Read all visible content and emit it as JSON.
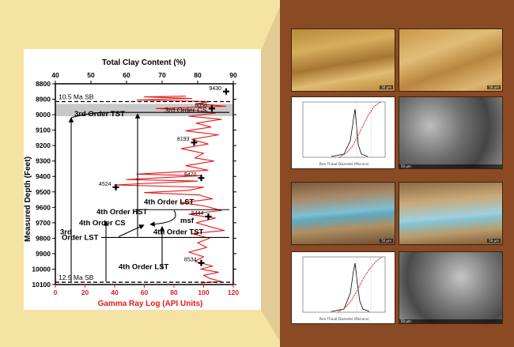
{
  "colors": {
    "background": "#f5e3a3",
    "photo_panel": "#8a4a23",
    "gamma_ray": "#e41a1c",
    "clay": "#000000",
    "condensed_section_band": "#c8c8c8"
  },
  "chart_data": {
    "type": "line",
    "title": "Total Clay Content (%)",
    "ylabel": "Measured Depth (Feet)",
    "xlabel_bottom": "Gamma Ray Log (API Units)",
    "ylim": [
      8800,
      10100
    ],
    "y_inverted": true,
    "y_ticks": [
      "8800",
      "8900",
      "9000",
      "9100",
      "9200",
      "9300",
      "9400",
      "9500",
      "9600",
      "9700",
      "9800",
      "9900",
      "10000",
      "10100"
    ],
    "top_axis": {
      "range": [
        40,
        90
      ],
      "ticks": [
        "40",
        "50",
        "60",
        "70",
        "80",
        "90"
      ]
    },
    "bottom_axis": {
      "range": [
        0,
        120
      ],
      "ticks": [
        "0",
        "20",
        "40",
        "60",
        "80",
        "100",
        "120"
      ]
    },
    "series": [
      {
        "axis": "bottom",
        "color": "#e41a1c",
        "points": [
          [
            88,
            8880
          ],
          [
            60,
            8885
          ],
          [
            92,
            8895
          ],
          [
            55,
            8905
          ],
          [
            104,
            8915
          ],
          [
            95,
            8930
          ],
          [
            115,
            8945
          ],
          [
            68,
            8960
          ],
          [
            98,
            8975
          ],
          [
            108,
            8990
          ],
          [
            90,
            9010
          ],
          [
            112,
            9030
          ],
          [
            95,
            9055
          ],
          [
            105,
            9080
          ],
          [
            88,
            9105
          ],
          [
            110,
            9130
          ],
          [
            92,
            9160
          ],
          [
            103,
            9190
          ],
          [
            85,
            9220
          ],
          [
            100,
            9250
          ],
          [
            94,
            9280
          ],
          [
            107,
            9300
          ],
          [
            88,
            9330
          ],
          [
            103,
            9360
          ],
          [
            55,
            9385
          ],
          [
            98,
            9395
          ],
          [
            48,
            9420
          ],
          [
            96,
            9430
          ],
          [
            40,
            9455
          ],
          [
            100,
            9470
          ],
          [
            90,
            9490
          ],
          [
            60,
            9505
          ],
          [
            97,
            9520
          ],
          [
            106,
            9545
          ],
          [
            85,
            9570
          ],
          [
            100,
            9590
          ],
          [
            112,
            9620
          ],
          [
            90,
            9645
          ],
          [
            108,
            9670
          ],
          [
            95,
            9700
          ],
          [
            106,
            9730
          ],
          [
            114,
            9750
          ],
          [
            92,
            9770
          ],
          [
            104,
            9800
          ],
          [
            96,
            9830
          ],
          [
            102,
            9860
          ],
          [
            90,
            9890
          ],
          [
            100,
            9920
          ],
          [
            94,
            9950
          ],
          [
            106,
            9980
          ],
          [
            98,
            10000
          ],
          [
            110,
            10020
          ],
          [
            100,
            10040
          ],
          [
            104,
            10060
          ],
          [
            112,
            10080
          ],
          [
            98,
            10090
          ]
        ]
      }
    ],
    "clay_samples": [
      {
        "depth": 8850,
        "clay": 88,
        "label": "9430"
      },
      {
        "depth": 8960,
        "clay": 84,
        "label": "8056"
      },
      {
        "depth": 9180,
        "clay": 79,
        "label": "8193"
      },
      {
        "depth": 9410,
        "clay": 81,
        "label": "9470"
      },
      {
        "depth": 9470,
        "clay": 57,
        "label": "4524"
      },
      {
        "depth": 9660,
        "clay": 83,
        "label": "8444"
      },
      {
        "depth": 9960,
        "clay": 81,
        "label": "8534"
      }
    ],
    "reference_lines": [
      {
        "depth": 8915,
        "label": "10.5 Ma SB"
      },
      {
        "depth": 10085,
        "label": "12.5 Ma SB"
      }
    ],
    "bands": [
      {
        "from": 8930,
        "to": 9010,
        "label": "3rd Order CS"
      }
    ],
    "annotations": [
      {
        "text": "3rd Order TST"
      },
      {
        "text": "4th Order LST"
      },
      {
        "text": "4th Order HST"
      },
      {
        "text": "4th Order CS"
      },
      {
        "text": "msf"
      },
      {
        "text": "4th Order TST"
      },
      {
        "text": "3rd"
      },
      {
        "text": "Order LST"
      },
      {
        "text": "4th Order LST"
      }
    ]
  },
  "photos": {
    "pore_throat_label": "Pore Throat Diameter (Microns)",
    "scale_bar": "50 μm"
  }
}
